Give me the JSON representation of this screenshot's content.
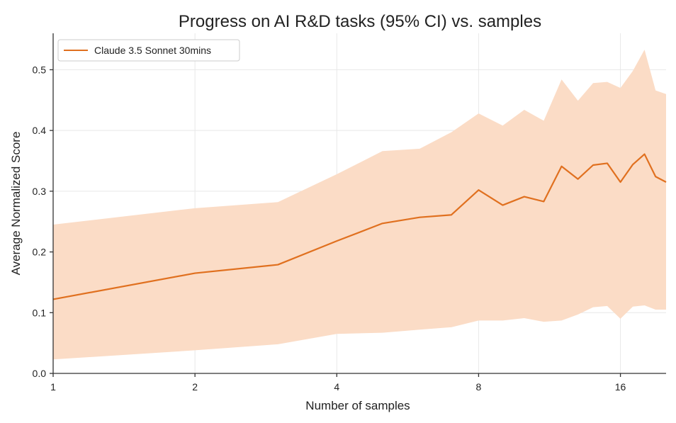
{
  "chart_data": {
    "type": "line",
    "title": "Progress on AI R&D tasks (95% CI) vs. samples",
    "xlabel": "Number of samples",
    "ylabel": "Average Normalized Score",
    "x_scale": "log2",
    "xlim": [
      1,
      20
    ],
    "ylim": [
      0,
      0.56
    ],
    "xticks": [
      1,
      2,
      4,
      8,
      16
    ],
    "xtick_labels": [
      "1",
      "2",
      "4",
      "8",
      "16"
    ],
    "yticks": [
      0.0,
      0.1,
      0.2,
      0.3,
      0.4,
      0.5
    ],
    "ytick_labels": [
      "0.0",
      "0.1",
      "0.2",
      "0.3",
      "0.4",
      "0.5"
    ],
    "grid": true,
    "legend_position": "top-left",
    "colors": {
      "line": "#e0701f",
      "band": "#fbdcc6"
    },
    "x": [
      1,
      2,
      3,
      4,
      5,
      6,
      7,
      8,
      9,
      10,
      11,
      12,
      13,
      14,
      15,
      16,
      17,
      18,
      19,
      20
    ],
    "series": [
      {
        "name": "Claude 3.5 Sonnet 30mins",
        "values": [
          0.122,
          0.165,
          0.179,
          0.218,
          0.247,
          0.257,
          0.261,
          0.302,
          0.277,
          0.291,
          0.283,
          0.341,
          0.32,
          0.343,
          0.346,
          0.315,
          0.344,
          0.361,
          0.324,
          0.315
        ],
        "ci_upper": [
          0.245,
          0.272,
          0.282,
          0.328,
          0.366,
          0.37,
          0.397,
          0.428,
          0.408,
          0.434,
          0.416,
          0.484,
          0.449,
          0.478,
          0.48,
          0.47,
          0.498,
          0.533,
          0.466,
          0.46
        ],
        "ci_lower": [
          0.023,
          0.038,
          0.048,
          0.065,
          0.067,
          0.072,
          0.076,
          0.087,
          0.087,
          0.091,
          0.085,
          0.087,
          0.097,
          0.109,
          0.111,
          0.09,
          0.11,
          0.112,
          0.105,
          0.105
        ]
      }
    ]
  }
}
